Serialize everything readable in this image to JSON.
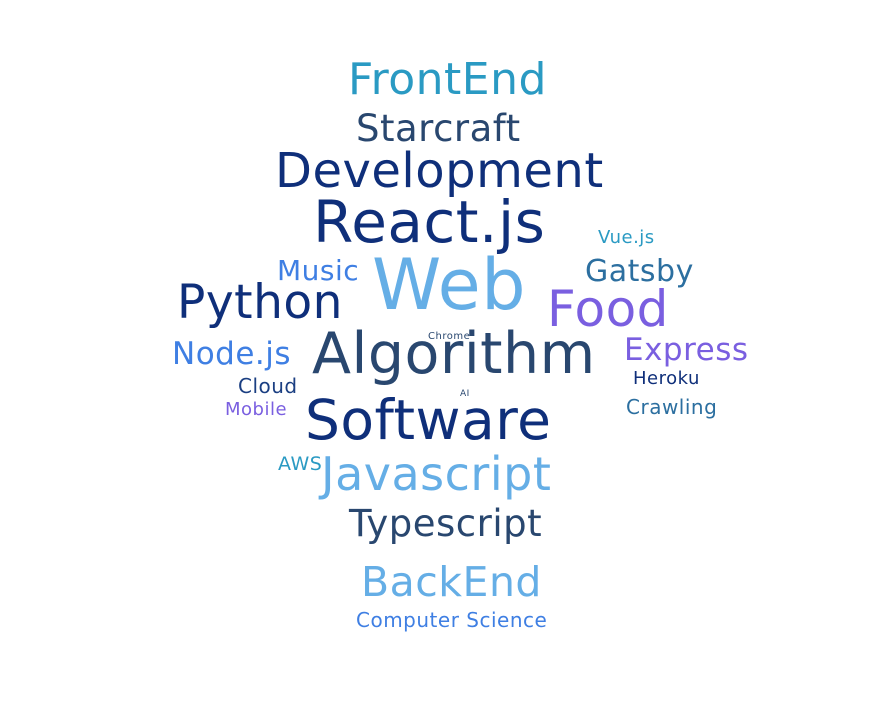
{
  "words": [
    {
      "text": "FrontEnd",
      "color": "#2a9ac3"
    },
    {
      "text": "Starcraft",
      "color": "#29476f"
    },
    {
      "text": "Development",
      "color": "#0f2f7a"
    },
    {
      "text": "React.js",
      "color": "#0f2f7a"
    },
    {
      "text": "Vue.js",
      "color": "#2a9ac3"
    },
    {
      "text": "Music",
      "color": "#3f7fe3"
    },
    {
      "text": "Web",
      "color": "#65aee6"
    },
    {
      "text": "Gatsby",
      "color": "#2c6fa0"
    },
    {
      "text": "Python",
      "color": "#0f2f7a"
    },
    {
      "text": "Food",
      "color": "#7a5fe0"
    },
    {
      "text": "Chrome",
      "color": "#29476f"
    },
    {
      "text": "Node.js",
      "color": "#3f7fe3"
    },
    {
      "text": "Algorithm",
      "color": "#29476f"
    },
    {
      "text": "Express",
      "color": "#7a5fe0"
    },
    {
      "text": "Cloud",
      "color": "#1b3f82"
    },
    {
      "text": "Heroku",
      "color": "#0f2f7a"
    },
    {
      "text": "AI",
      "color": "#29476f"
    },
    {
      "text": "Mobile",
      "color": "#7a5fe0"
    },
    {
      "text": "Crawling",
      "color": "#2c6fa0"
    },
    {
      "text": "Software",
      "color": "#0f2f7a"
    },
    {
      "text": "AWS",
      "color": "#2a9ac3"
    },
    {
      "text": "Javascript",
      "color": "#65aee6"
    },
    {
      "text": "Typescript",
      "color": "#29476f"
    },
    {
      "text": "BackEnd",
      "color": "#65aee6"
    },
    {
      "text": "Computer Science",
      "color": "#3f7fe3"
    }
  ]
}
